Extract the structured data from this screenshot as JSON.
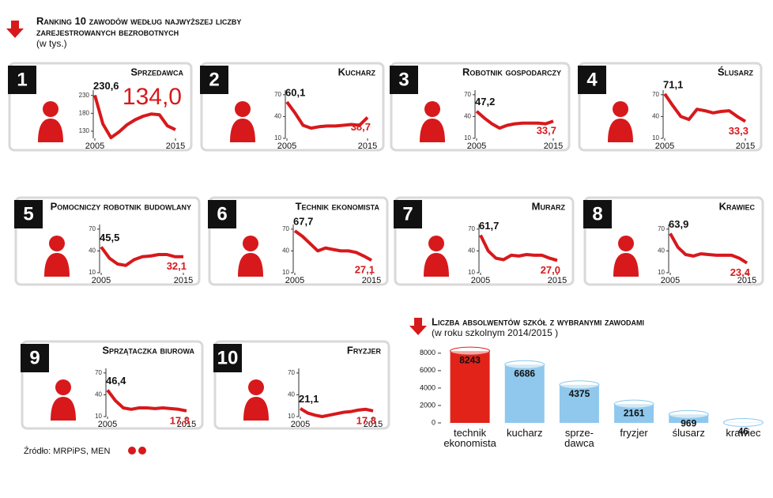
{
  "header": {
    "title": "Ranking 10 zawodów według najwyższej liczby zarejestrowanych bezrobotnych",
    "unit": "(w tys.)"
  },
  "source": "Źródło: MRPiPS, MEN",
  "chart_data": [
    {
      "type": "line",
      "rank": 1,
      "title": "Sprzedawca",
      "color": "#d7191c",
      "x": [
        2005,
        2006,
        2007,
        2008,
        2009,
        2010,
        2011,
        2012,
        2013,
        2014,
        2015
      ],
      "values": [
        230.6,
        150,
        112,
        128,
        148,
        162,
        172,
        178,
        176,
        145,
        134.0
      ],
      "value_labels": [
        "230,6",
        null,
        null,
        null,
        null,
        null,
        null,
        null,
        null,
        null,
        "134,0"
      ],
      "xlim": [
        2005,
        2015
      ],
      "xticks": [
        2005,
        2015
      ],
      "ylim": [
        110,
        236
      ],
      "yticks": [
        130,
        180,
        230
      ]
    },
    {
      "type": "line",
      "rank": 2,
      "title": "Kucharz",
      "color": "#d7191c",
      "x": [
        2005,
        2006,
        2007,
        2008,
        2009,
        2010,
        2011,
        2012,
        2013,
        2014,
        2015
      ],
      "values": [
        60.1,
        45,
        28,
        24,
        26,
        27,
        27,
        28,
        29,
        28,
        38.7
      ],
      "value_labels": [
        "60,1",
        null,
        null,
        null,
        null,
        null,
        null,
        null,
        null,
        null,
        "38,7"
      ],
      "xlim": [
        2005,
        2015
      ],
      "xticks": [
        2005,
        2015
      ],
      "ylim": [
        10,
        72
      ],
      "yticks": [
        10,
        40,
        70
      ]
    },
    {
      "type": "line",
      "rank": 3,
      "title": "Robotnik gospodarczy",
      "color": "#d7191c",
      "x": [
        2005,
        2006,
        2007,
        2008,
        2009,
        2010,
        2011,
        2012,
        2013,
        2014,
        2015
      ],
      "values": [
        47.2,
        38,
        30,
        24,
        28,
        30,
        31,
        31,
        31,
        30,
        33.7
      ],
      "value_labels": [
        "47,2",
        null,
        null,
        null,
        null,
        null,
        null,
        null,
        null,
        null,
        "33,7"
      ],
      "xlim": [
        2005,
        2015
      ],
      "xticks": [
        2005,
        2015
      ],
      "ylim": [
        10,
        72
      ],
      "yticks": [
        10,
        40,
        70
      ]
    },
    {
      "type": "line",
      "rank": 4,
      "title": "Ślusarz",
      "color": "#d7191c",
      "x": [
        2005,
        2006,
        2007,
        2008,
        2009,
        2010,
        2011,
        2012,
        2013,
        2014,
        2015
      ],
      "values": [
        71.1,
        55,
        40,
        36,
        50,
        48,
        45,
        47,
        48,
        40,
        33.3
      ],
      "value_labels": [
        "71,1",
        null,
        null,
        null,
        null,
        null,
        null,
        null,
        null,
        null,
        "33,3"
      ],
      "xlim": [
        2005,
        2015
      ],
      "xticks": [
        2005,
        2015
      ],
      "ylim": [
        10,
        72
      ],
      "yticks": [
        10,
        40,
        70
      ]
    },
    {
      "type": "line",
      "rank": 5,
      "title": "Pomocniczy robotnik budowlany",
      "color": "#d7191c",
      "x": [
        2005,
        2006,
        2007,
        2008,
        2009,
        2010,
        2011,
        2012,
        2013,
        2014,
        2015
      ],
      "values": [
        45.5,
        30,
        22,
        20,
        28,
        32,
        33,
        35,
        35,
        32,
        32.1
      ],
      "value_labels": [
        "45,5",
        null,
        null,
        null,
        null,
        null,
        null,
        null,
        null,
        null,
        "32,1"
      ],
      "xlim": [
        2005,
        2015
      ],
      "xticks": [
        2005,
        2015
      ],
      "ylim": [
        10,
        72
      ],
      "yticks": [
        10,
        40,
        70
      ]
    },
    {
      "type": "line",
      "rank": 6,
      "title": "Technik ekonomista",
      "color": "#d7191c",
      "x": [
        2005,
        2006,
        2007,
        2008,
        2009,
        2010,
        2011,
        2012,
        2013,
        2014,
        2015
      ],
      "values": [
        67.7,
        60,
        50,
        40,
        44,
        42,
        40,
        40,
        38,
        33,
        27.1
      ],
      "value_labels": [
        "67,7",
        null,
        null,
        null,
        null,
        null,
        null,
        null,
        null,
        null,
        "27,1"
      ],
      "xlim": [
        2005,
        2015
      ],
      "xticks": [
        2005,
        2015
      ],
      "ylim": [
        10,
        72
      ],
      "yticks": [
        10,
        40,
        70
      ]
    },
    {
      "type": "line",
      "rank": 7,
      "title": "Murarz",
      "color": "#d7191c",
      "x": [
        2005,
        2006,
        2007,
        2008,
        2009,
        2010,
        2011,
        2012,
        2013,
        2014,
        2015
      ],
      "values": [
        61.7,
        40,
        30,
        28,
        34,
        33,
        35,
        34,
        34,
        30,
        27.0
      ],
      "value_labels": [
        "61,7",
        null,
        null,
        null,
        null,
        null,
        null,
        null,
        null,
        null,
        "27,0"
      ],
      "xlim": [
        2005,
        2015
      ],
      "xticks": [
        2005,
        2015
      ],
      "ylim": [
        10,
        72
      ],
      "yticks": [
        10,
        40,
        70
      ]
    },
    {
      "type": "line",
      "rank": 8,
      "title": "Krawiec",
      "color": "#d7191c",
      "x": [
        2005,
        2006,
        2007,
        2008,
        2009,
        2010,
        2011,
        2012,
        2013,
        2014,
        2015
      ],
      "values": [
        63.9,
        45,
        35,
        33,
        36,
        35,
        34,
        34,
        34,
        30,
        23.4
      ],
      "value_labels": [
        "63,9",
        null,
        null,
        null,
        null,
        null,
        null,
        null,
        null,
        null,
        "23,4"
      ],
      "xlim": [
        2005,
        2015
      ],
      "xticks": [
        2005,
        2015
      ],
      "ylim": [
        10,
        72
      ],
      "yticks": [
        10,
        40,
        70
      ]
    },
    {
      "type": "line",
      "rank": 9,
      "title": "Sprzątaczka biurowa",
      "color": "#d7191c",
      "x": [
        2005,
        2006,
        2007,
        2008,
        2009,
        2010,
        2011,
        2012,
        2013,
        2014,
        2015
      ],
      "values": [
        46.4,
        32,
        22,
        20,
        22,
        22,
        21,
        22,
        21,
        20,
        17.8
      ],
      "value_labels": [
        "46,4",
        null,
        null,
        null,
        null,
        null,
        null,
        null,
        null,
        null,
        "17,8"
      ],
      "xlim": [
        2005,
        2015
      ],
      "xticks": [
        2005,
        2015
      ],
      "ylim": [
        10,
        72
      ],
      "yticks": [
        10,
        40,
        70
      ]
    },
    {
      "type": "line",
      "rank": 10,
      "title": "Fryzjer",
      "color": "#d7191c",
      "x": [
        2005,
        2006,
        2007,
        2008,
        2009,
        2010,
        2011,
        2012,
        2013,
        2014,
        2015
      ],
      "values": [
        21.1,
        15,
        12,
        10,
        12,
        14,
        16,
        17,
        19,
        20,
        17.8
      ],
      "value_labels": [
        "21,1",
        null,
        null,
        null,
        null,
        null,
        null,
        null,
        null,
        null,
        "17,8"
      ],
      "xlim": [
        2005,
        2015
      ],
      "xticks": [
        2005,
        2015
      ],
      "ylim": [
        10,
        72
      ],
      "yticks": [
        10,
        40,
        70
      ]
    },
    {
      "type": "bar",
      "title": "Liczba absolwentów szkół z wybranymi zawodami",
      "subtitle": "(w roku szkolnym 2014/2015 )",
      "categories": [
        "technik ekonomista",
        "kucharz",
        "sprze-dawca",
        "fryzjer",
        "ślusarz",
        "krawiec"
      ],
      "values": [
        8243,
        6686,
        4375,
        2161,
        969,
        46
      ],
      "colors": [
        "#e2231a",
        "#8fc8ec",
        "#8fc8ec",
        "#8fc8ec",
        "#8fc8ec",
        "#8fc8ec"
      ],
      "ylim": [
        0,
        8800
      ],
      "yticks": [
        0,
        2000,
        4000,
        6000,
        8000
      ]
    }
  ]
}
